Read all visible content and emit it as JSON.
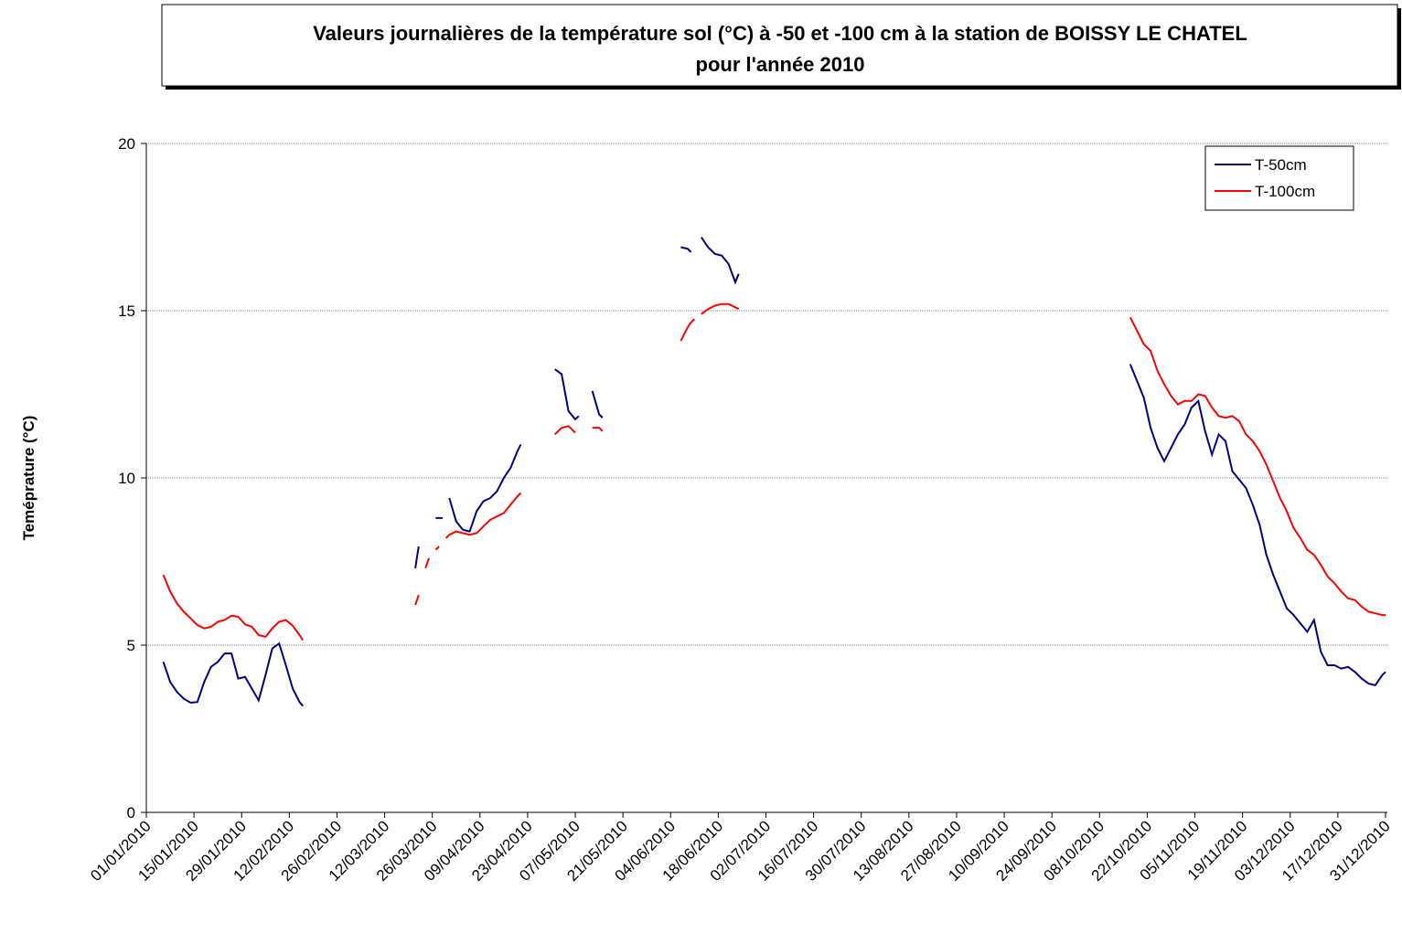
{
  "chart_data": {
    "type": "line",
    "title": [
      "Valeurs journalières de la température sol (°C) à -50 et -100 cm à la station de BOISSY LE CHATEL",
      "pour l'année 2010"
    ],
    "y_label": "Teméprature (°C)",
    "x": [
      "06/01/2010",
      "08/01/2010",
      "10/01/2010",
      "12/01/2010",
      "14/01/2010",
      "16/01/2010",
      "18/01/2010",
      "20/01/2010",
      "22/01/2010",
      "24/01/2010",
      "26/01/2010",
      "28/01/2010",
      "30/01/2010",
      "01/02/2010",
      "03/02/2010",
      "05/02/2010",
      "07/02/2010",
      "09/02/2010",
      "11/02/2010",
      "13/02/2010",
      "15/02/2010",
      "16/02/2010",
      "17/02/2010",
      "21/03/2010",
      "22/03/2010",
      "23/03/2010",
      "24/03/2010",
      "25/03/2010",
      "26/03/2010",
      "27/03/2010",
      "28/03/2010",
      "29/03/2010",
      "30/03/2010",
      "31/03/2010",
      "02/04/2010",
      "04/04/2010",
      "06/04/2010",
      "08/04/2010",
      "10/04/2010",
      "12/04/2010",
      "14/04/2010",
      "16/04/2010",
      "18/04/2010",
      "20/04/2010",
      "21/04/2010",
      "22/04/2010",
      "01/05/2010",
      "03/05/2010",
      "05/05/2010",
      "07/05/2010",
      "08/05/2010",
      "09/05/2010",
      "12/05/2010",
      "14/05/2010",
      "15/05/2010",
      "16/05/2010",
      "07/06/2010",
      "09/06/2010",
      "10/06/2010",
      "11/06/2010",
      "12/06/2010",
      "13/06/2010",
      "15/06/2010",
      "17/06/2010",
      "19/06/2010",
      "21/06/2010",
      "23/06/2010",
      "24/06/2010",
      "25/06/2010",
      "17/10/2010",
      "19/10/2010",
      "21/10/2010",
      "23/10/2010",
      "25/10/2010",
      "27/10/2010",
      "29/10/2010",
      "31/10/2010",
      "02/11/2010",
      "04/11/2010",
      "06/11/2010",
      "08/11/2010",
      "10/11/2010",
      "12/11/2010",
      "14/11/2010",
      "16/11/2010",
      "18/11/2010",
      "20/11/2010",
      "22/11/2010",
      "24/11/2010",
      "26/11/2010",
      "28/11/2010",
      "30/11/2010",
      "02/12/2010",
      "04/12/2010",
      "06/12/2010",
      "08/12/2010",
      "10/12/2010",
      "12/12/2010",
      "14/12/2010",
      "16/12/2010",
      "18/12/2010",
      "20/12/2010",
      "22/12/2010",
      "24/12/2010",
      "26/12/2010",
      "28/12/2010",
      "30/12/2010",
      "31/12/2010"
    ],
    "series": [
      {
        "name": "T-50cm",
        "color": "#000080",
        "values": [
          4.5,
          3.9,
          3.6,
          3.4,
          3.28,
          3.3,
          3.9,
          4.35,
          4.5,
          4.75,
          4.75,
          4.0,
          4.05,
          3.7,
          3.35,
          4.1,
          4.9,
          5.05,
          4.4,
          3.7,
          3.3,
          3.18,
          null,
          7.3,
          7.95,
          null,
          null,
          null,
          null,
          8.8,
          8.8,
          8.8,
          null,
          9.4,
          8.7,
          8.45,
          8.4,
          9.0,
          9.3,
          9.4,
          9.6,
          10.0,
          10.3,
          10.8,
          11.0,
          null,
          13.25,
          13.1,
          12.0,
          11.75,
          11.85,
          null,
          12.6,
          11.9,
          11.8,
          null,
          16.9,
          16.85,
          16.75,
          null,
          null,
          17.2,
          16.9,
          16.7,
          16.65,
          16.4,
          15.85,
          16.1,
          null,
          13.4,
          12.9,
          12.4,
          11.5,
          10.9,
          10.5,
          10.9,
          11.3,
          11.6,
          12.1,
          12.3,
          11.4,
          10.7,
          11.3,
          11.1,
          10.2,
          9.95,
          9.7,
          9.2,
          8.6,
          7.7,
          7.1,
          6.6,
          6.1,
          5.9,
          5.65,
          5.4,
          5.75,
          4.8,
          4.4,
          4.4,
          4.3,
          4.35,
          4.2,
          4.0,
          3.85,
          3.8,
          4.1,
          4.2
        ]
      },
      {
        "name": "T-100cm",
        "color": "#ff0000",
        "values": [
          7.1,
          6.6,
          6.25,
          6.0,
          5.8,
          5.6,
          5.5,
          5.55,
          5.7,
          5.75,
          5.88,
          5.85,
          5.62,
          5.55,
          5.3,
          5.25,
          5.5,
          5.7,
          5.75,
          5.58,
          5.3,
          5.15,
          null,
          6.2,
          6.5,
          null,
          7.3,
          7.6,
          null,
          7.85,
          7.95,
          null,
          8.2,
          8.3,
          8.4,
          8.35,
          8.3,
          8.35,
          8.55,
          8.75,
          8.85,
          8.95,
          9.2,
          9.45,
          9.55,
          null,
          11.3,
          11.5,
          11.55,
          11.35,
          null,
          null,
          11.5,
          11.5,
          11.4,
          null,
          14.1,
          14.5,
          14.65,
          14.75,
          null,
          14.9,
          15.05,
          15.15,
          15.2,
          15.2,
          15.1,
          15.05,
          null,
          14.8,
          14.4,
          14.0,
          13.8,
          13.2,
          12.8,
          12.45,
          12.2,
          12.3,
          12.3,
          12.5,
          12.45,
          12.1,
          11.85,
          11.8,
          11.85,
          11.7,
          11.3,
          11.1,
          10.8,
          10.4,
          9.9,
          9.4,
          9.0,
          8.5,
          8.2,
          7.85,
          7.7,
          7.4,
          7.05,
          6.85,
          6.6,
          6.4,
          6.35,
          6.15,
          6.0,
          5.95,
          5.9,
          5.9
        ]
      }
    ],
    "xlim": [
      "01/01/2010",
      "31/12/2010"
    ],
    "xticks": [
      "01/01/2010",
      "15/01/2010",
      "29/01/2010",
      "12/02/2010",
      "26/02/2010",
      "12/03/2010",
      "26/03/2010",
      "09/04/2010",
      "23/04/2010",
      "07/05/2010",
      "21/05/2010",
      "04/06/2010",
      "18/06/2010",
      "02/07/2010",
      "16/07/2010",
      "30/07/2010",
      "13/08/2010",
      "27/08/2010",
      "10/09/2010",
      "24/09/2010",
      "08/10/2010",
      "22/10/2010",
      "05/11/2010",
      "19/11/2010",
      "03/12/2010",
      "17/12/2010",
      "31/12/2010"
    ],
    "ylim": [
      0,
      20
    ],
    "yticks": [
      0,
      5,
      10,
      15,
      20
    ],
    "grid": true,
    "legend": "top-right"
  }
}
